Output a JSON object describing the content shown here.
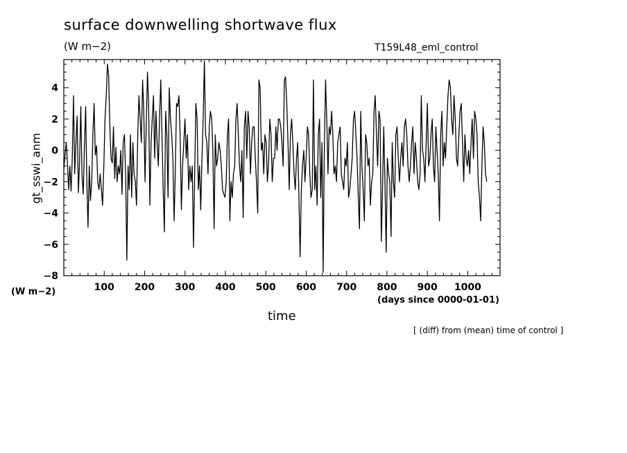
{
  "chart_data": {
    "type": "line",
    "title": "surface downwelling shortwave flux",
    "units_label": "(W m−2)",
    "run_name": "T159L48_eml_control",
    "ylabel": "gt_sswi_anm",
    "y_units": "(W m−2)",
    "xlabel": "time",
    "x_units": "(days since 0000-01-01)",
    "footnote": "[ (diff) from (mean) time of control ]",
    "xlim": [
      0,
      1080
    ],
    "ylim": [
      -8,
      5.8
    ],
    "x_ticks": [
      100,
      200,
      300,
      400,
      500,
      600,
      700,
      800,
      900,
      1000
    ],
    "y_ticks": [
      4,
      2,
      0,
      -2,
      -4,
      -6,
      -8
    ],
    "grid": false,
    "line_color": "#000000",
    "series": [
      {
        "x_start": 0,
        "x_step": 3,
        "values": [
          -1.2,
          -0.3,
          0.5,
          -0.8,
          -2.5,
          -1.0,
          -2.6,
          -0.5,
          3.5,
          -1.5,
          0.5,
          2.2,
          -2.7,
          -0.8,
          2.8,
          -1.5,
          -2.8,
          0.2,
          2.8,
          -2.0,
          -4.9,
          -1.0,
          -3.2,
          -2.0,
          1.0,
          3.0,
          -0.3,
          0.3,
          -2.0,
          -2.5,
          -1.5,
          -2.5,
          -3.5,
          -1.0,
          2.0,
          3.5,
          5.5,
          4.8,
          1.5,
          -0.5,
          -0.8,
          1.5,
          -1.8,
          0.2,
          -2.0,
          -1.0,
          -1.5,
          0.0,
          -2.8,
          0.5,
          1.0,
          -1.5,
          -7.0,
          -1.0,
          -2.5,
          1.0,
          -3.0,
          0.5,
          -1.5,
          -2.0,
          -3.5,
          1.0,
          3.5,
          2.0,
          0.5,
          4.5,
          2.5,
          -2.0,
          1.5,
          5.0,
          3.0,
          -3.5,
          0.5,
          2.0,
          3.5,
          -0.5,
          2.5,
          0.5,
          -1.0,
          2.0,
          4.5,
          1.0,
          -2.5,
          -5.2,
          2.5,
          1.0,
          -3.0,
          4.0,
          2.0,
          1.0,
          -0.5,
          -4.5,
          -1.5,
          3.0,
          2.8,
          3.5,
          1.0,
          -3.8,
          -1.0,
          0.5,
          2.0,
          -0.5,
          1.0,
          -2.5,
          -1.0,
          -2.0,
          -1.0,
          -6.2,
          -1.5,
          3.0,
          2.0,
          -2.5,
          -1.0,
          -3.8,
          -0.5,
          2.0,
          5.7,
          1.0,
          0.5,
          -1.5,
          1.5,
          2.5,
          2.0,
          0.0,
          -5.0,
          1.0,
          -1.0,
          -0.5,
          0.5,
          0.0,
          -1.0,
          -2.5,
          -2.8,
          -3.0,
          -2.0,
          1.0,
          2.0,
          -4.5,
          -2.0,
          -3.0,
          -1.5,
          -1.0,
          2.0,
          3.0,
          1.0,
          -1.0,
          -2.0,
          0.0,
          -4.3,
          1.5,
          2.5,
          -0.5,
          2.5,
          1.5,
          -1.5,
          0.5,
          1.5,
          1.5,
          -0.5,
          -2.0,
          -4.0,
          4.5,
          4.0,
          0.0,
          0.5,
          -1.5,
          1.0,
          0.5,
          -2.0,
          -0.8,
          2.0,
          1.0,
          -2.0,
          -0.5,
          -0.5,
          1.5,
          0.0,
          2.0,
          2.0,
          1.5,
          0.5,
          -1.0,
          4.5,
          4.7,
          3.0,
          0.5,
          -2.5,
          1.0,
          2.0,
          0.5,
          -1.5,
          -2.5,
          -0.5,
          0.5,
          -3.0,
          -6.8,
          -2.5,
          -1.0,
          0.0,
          -2.0,
          -0.5,
          1.5,
          1.0,
          -1.5,
          -3.0,
          -2.5,
          4.5,
          -2.5,
          -1.0,
          -3.5,
          1.0,
          2.0,
          -3.0,
          0.5,
          -7.8,
          0.5,
          4.5,
          2.0,
          -1.5,
          1.5,
          1.0,
          2.5,
          1.0,
          -1.5,
          -1.0,
          -2.0,
          0.5,
          1.0,
          1.5,
          -1.5,
          -2.0,
          -2.5,
          -0.5,
          -1.0,
          0.5,
          -3.0,
          -2.5,
          -1.5,
          -0.5,
          2.0,
          2.5,
          1.0,
          -0.5,
          -3.0,
          -5.0,
          2.5,
          -1.0,
          -2.5,
          -4.5,
          1.0,
          0.5,
          -1.0,
          -0.5,
          -3.5,
          -2.0,
          -1.5,
          2.5,
          3.5,
          1.0,
          -1.0,
          2.5,
          2.0,
          -5.8,
          -2.5,
          1.5,
          -2.0,
          -6.5,
          -0.5,
          -1.5,
          -2.0,
          -5.5,
          0.5,
          -2.0,
          -3.0,
          1.0,
          1.5,
          -0.5,
          -2.0,
          -0.5,
          0.5,
          -1.0,
          1.5,
          2.0,
          1.0,
          -1.0,
          -2.0,
          -1.0,
          0.5,
          1.5,
          -1.5,
          0.5,
          -0.5,
          -2.0,
          -2.5,
          -1.5,
          3.5,
          0.0,
          -0.5,
          -2.0,
          0.5,
          3.0,
          -1.0,
          -0.5,
          1.0,
          2.0,
          -1.0,
          -2.0,
          1.5,
          0.0,
          -1.5,
          -4.5,
          1.0,
          2.5,
          -1.0,
          0.5,
          -0.5,
          1.5,
          3.5,
          4.5,
          4.0,
          2.0,
          1.0,
          3.5,
          2.0,
          -0.5,
          -1.0,
          1.0,
          2.5,
          3.0,
          0.5,
          -2.0,
          1.0,
          -0.5,
          -1.0,
          0.0,
          -1.5,
          0.5,
          2.0,
          -0.5,
          2.5,
          2.0,
          1.0,
          -2.0,
          -3.0,
          -4.5,
          -1.0,
          1.5,
          0.5,
          -1.5,
          -2.0
        ]
      }
    ]
  }
}
